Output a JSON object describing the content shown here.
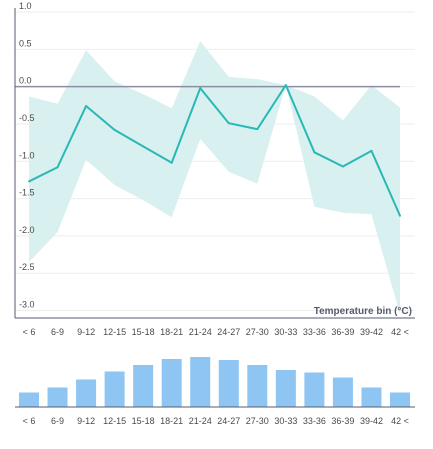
{
  "chart_data": [
    {
      "type": "line",
      "title": "",
      "xlabel": "Temperature bin (°C)",
      "ylabel": "",
      "categories": [
        "< 6",
        "6-9",
        "9-12",
        "12-15",
        "15-18",
        "18-21",
        "21-24",
        "24-27",
        "27-30",
        "30-33",
        "33-36",
        "36-39",
        "39-42",
        "42 <"
      ],
      "series": [
        {
          "values": [
            -1.27,
            -1.08,
            -0.26,
            -0.58,
            -0.8,
            -1.02,
            -0.02,
            -0.49,
            -0.57,
            0.02,
            -0.88,
            -1.07,
            -0.86,
            -1.73
          ],
          "band_upper": [
            -0.13,
            -0.23,
            0.49,
            0.07,
            -0.1,
            -0.29,
            0.61,
            0.13,
            0.1,
            0.02,
            -0.13,
            -0.45,
            0.02,
            -0.28
          ],
          "band_lower": [
            -2.35,
            -1.95,
            -0.98,
            -1.32,
            -1.52,
            -1.75,
            -0.7,
            -1.14,
            -1.3,
            0.02,
            -1.61,
            -1.69,
            -1.71,
            -3.05
          ]
        }
      ],
      "reference_line": 0,
      "ylim": [
        -3.1,
        1.0
      ],
      "yticks": [
        1.0,
        0.5,
        0.0,
        -0.5,
        -1.0,
        -1.5,
        -2.0,
        -2.5,
        -3.0
      ],
      "ytick_labels": [
        "1.0",
        "0.5",
        "0.0",
        "-0.5",
        "-1.0",
        "-1.5",
        "-2.0",
        "-2.5",
        "-3.0"
      ],
      "grid": true,
      "colors": {
        "line": "#2ab8b4",
        "band": "#d8f1f0",
        "reference": "#8c8ca3",
        "axis": "#555a6e",
        "grid": "#eeeeee"
      }
    },
    {
      "type": "bar",
      "title": "",
      "categories": [
        "< 6",
        "6-9",
        "9-12",
        "12-15",
        "15-18",
        "18-21",
        "21-24",
        "24-27",
        "27-30",
        "30-33",
        "33-36",
        "36-39",
        "39-42",
        "42 <"
      ],
      "values": [
        0.29,
        0.39,
        0.55,
        0.71,
        0.84,
        0.96,
        1.0,
        0.94,
        0.84,
        0.74,
        0.69,
        0.59,
        0.39,
        0.29
      ],
      "ylim": [
        0,
        1
      ],
      "grid": false,
      "colors": {
        "bar": "#8ec5f2",
        "axis": "#555a6e"
      }
    }
  ]
}
